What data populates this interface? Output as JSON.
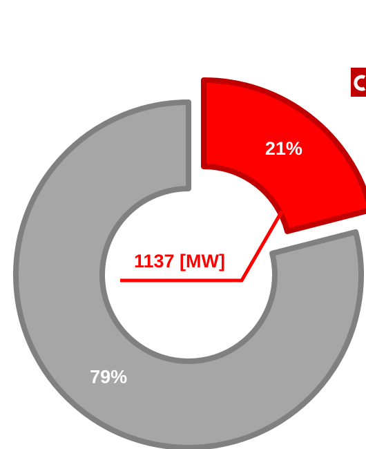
{
  "chart_data": {
    "type": "donut",
    "values": [
      21,
      79
    ],
    "value_labels": [
      "21%",
      "79%"
    ],
    "colors": [
      "#ff0000",
      "#a6a6a6"
    ],
    "edge_colors": [
      "#c00000",
      "#808080"
    ],
    "annotation": "1137 [MW]"
  }
}
